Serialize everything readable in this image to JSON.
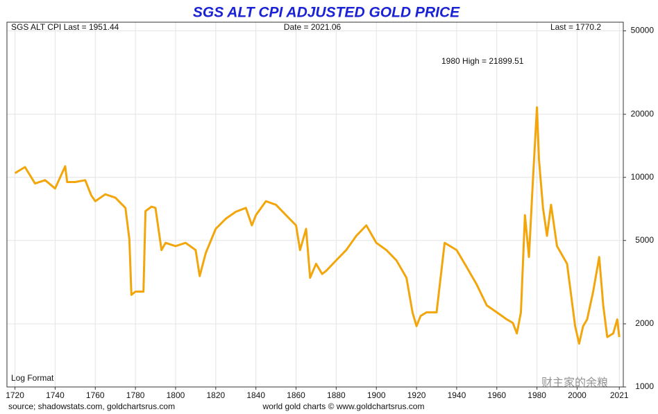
{
  "chart_data": {
    "type": "line",
    "title": "SGS ALT CPI ADJUSTED GOLD PRICE",
    "annotations": [
      "SGS ALT CPI Last = 1951.44",
      "Date = 2021.06",
      "Last = 1770.2",
      "1980 High = 21899.51",
      "Log Format"
    ],
    "source_left": "source; shadowstats.com, goldchartsrus.com",
    "source_right": "world gold charts © www.goldchartsrus.com",
    "watermark": "财主家的余粮",
    "log_scale": true,
    "grid": true,
    "xlim": [
      1716,
      2023
    ],
    "xticks": [
      1720,
      1740,
      1760,
      1780,
      1800,
      1820,
      1840,
      1860,
      1880,
      1900,
      1920,
      1940,
      1960,
      1980,
      2000,
      2021
    ],
    "ylim": [
      1000,
      55000
    ],
    "yticks": [
      1000,
      2000,
      5000,
      10000,
      20000,
      50000
    ],
    "series": [
      {
        "color": "#f2a60c",
        "x": [
          1720,
          1725,
          1730,
          1735,
          1740,
          1745,
          1746,
          1750,
          1755,
          1758,
          1760,
          1765,
          1770,
          1775,
          1777,
          1778,
          1780,
          1784,
          1785,
          1788,
          1790,
          1793,
          1795,
          1800,
          1805,
          1810,
          1812,
          1815,
          1820,
          1825,
          1830,
          1835,
          1838,
          1840,
          1845,
          1850,
          1855,
          1860,
          1862,
          1865,
          1867,
          1870,
          1873,
          1875,
          1880,
          1885,
          1890,
          1895,
          1900,
          1905,
          1910,
          1915,
          1918,
          1920,
          1922,
          1925,
          1930,
          1934,
          1940,
          1945,
          1950,
          1955,
          1960,
          1965,
          1968,
          1970,
          1972,
          1974,
          1976,
          1978,
          1980,
          1981,
          1983,
          1985,
          1987,
          1990,
          1995,
          1999,
          2001,
          2003,
          2005,
          2008,
          2011,
          2013,
          2015,
          2018,
          2020,
          2021
        ],
        "values": [
          10470,
          11200,
          9350,
          9700,
          8850,
          11300,
          9500,
          9500,
          9700,
          8200,
          7700,
          8300,
          8000,
          7150,
          5060,
          2750,
          2850,
          2850,
          6900,
          7250,
          7150,
          4500,
          4870,
          4700,
          4870,
          4500,
          3380,
          4350,
          5680,
          6350,
          6850,
          7150,
          5900,
          6600,
          7700,
          7400,
          6600,
          5900,
          4500,
          5680,
          3320,
          3870,
          3460,
          3580,
          4020,
          4500,
          5260,
          5900,
          4870,
          4500,
          4020,
          3320,
          2270,
          1950,
          2180,
          2270,
          2270,
          4870,
          4500,
          3730,
          3080,
          2450,
          2270,
          2100,
          2020,
          1800,
          2270,
          6600,
          4170,
          9700,
          21600,
          12200,
          7150,
          5260,
          7400,
          4700,
          3870,
          1950,
          1610,
          1950,
          2100,
          2850,
          4170,
          2450,
          1730,
          1800,
          2100,
          1730
        ]
      }
    ]
  }
}
